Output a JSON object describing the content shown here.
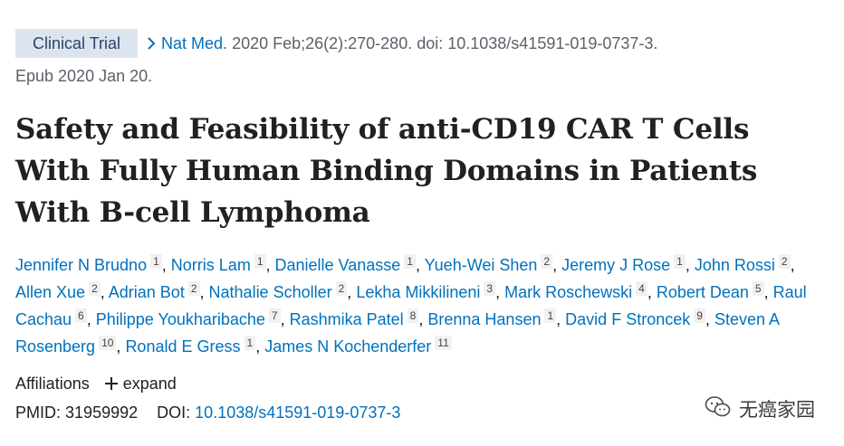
{
  "citation": {
    "badge": "Clinical Trial",
    "journal": "Nat Med.",
    "details": " 2020 Feb;26(2):270-280. doi: 10.1038/s41591-019-0737-3.",
    "epub": "Epub 2020 Jan 20."
  },
  "title": "Safety and Feasibility of anti-CD19 CAR T Cells With Fully Human Binding Domains in Patients With B-cell Lymphoma",
  "authors": [
    {
      "name": "Jennifer N Brudno",
      "aff": "1"
    },
    {
      "name": "Norris Lam",
      "aff": "1"
    },
    {
      "name": "Danielle Vanasse",
      "aff": "1"
    },
    {
      "name": "Yueh-Wei Shen",
      "aff": "2"
    },
    {
      "name": "Jeremy J Rose",
      "aff": "1"
    },
    {
      "name": "John Rossi",
      "aff": "2"
    },
    {
      "name": "Allen Xue",
      "aff": "2"
    },
    {
      "name": "Adrian Bot",
      "aff": "2"
    },
    {
      "name": "Nathalie Scholler",
      "aff": "2"
    },
    {
      "name": "Lekha Mikkilineni",
      "aff": "3"
    },
    {
      "name": "Mark Roschewski",
      "aff": "4"
    },
    {
      "name": "Robert Dean",
      "aff": "5"
    },
    {
      "name": "Raul Cachau",
      "aff": "6"
    },
    {
      "name": "Philippe Youkharibache",
      "aff": "7"
    },
    {
      "name": "Rashmika Patel",
      "aff": "8"
    },
    {
      "name": "Brenna Hansen",
      "aff": "1"
    },
    {
      "name": "David F Stroncek",
      "aff": "9"
    },
    {
      "name": "Steven A Rosenberg",
      "aff": "10"
    },
    {
      "name": "Ronald E Gress",
      "aff": "1"
    },
    {
      "name": "James N Kochenderfer",
      "aff": "11"
    }
  ],
  "affiliations": {
    "label": "Affiliations",
    "expand_label": "expand"
  },
  "ids": {
    "pmid_label": "PMID:",
    "pmid": "31959992",
    "doi_label": "DOI:",
    "doi": "10.1038/s41591-019-0737-3"
  },
  "watermark": {
    "text": "无癌家园",
    "icon": "wechat-icon"
  },
  "colors": {
    "link": "#0071bc",
    "badge_bg": "#dce4ef",
    "badge_text": "#2c4466",
    "text": "#212121",
    "muted": "#5b616b"
  }
}
